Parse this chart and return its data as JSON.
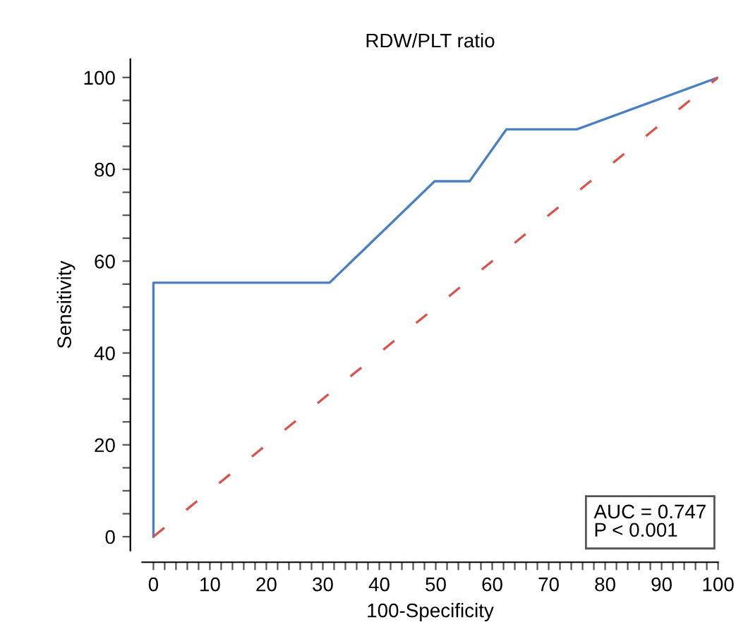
{
  "chart_data": {
    "type": "line",
    "title": "RDW/PLT ratio",
    "xlabel": "100-Specificity",
    "ylabel": "Sensitivity",
    "series": [
      {
        "color": "#4a7fc1",
        "x": [
          0,
          0,
          31.2,
          49.8,
          56.0,
          62.5,
          75.0,
          100
        ],
        "values": [
          0,
          55.3,
          55.3,
          77.4,
          77.4,
          88.7,
          88.7,
          100
        ],
        "line_style": "solid"
      },
      {
        "color": "#d9534f",
        "x": [
          0,
          100
        ],
        "values": [
          0,
          100
        ],
        "line_style": "dashed"
      }
    ],
    "xlim": [
      -2,
      100
    ],
    "ylim": [
      -3,
      104
    ],
    "xticks": [
      0,
      {
        "value": 2,
        "label": null
      },
      {
        "value": 4,
        "label": null
      },
      {
        "value": 6,
        "label": null
      },
      {
        "value": 8,
        "label": null
      },
      10,
      {
        "value": 12,
        "label": null
      },
      {
        "value": 14,
        "label": null
      },
      {
        "value": 16,
        "label": null
      },
      {
        "value": 18,
        "label": null
      },
      20,
      {
        "value": 22,
        "label": null
      },
      {
        "value": 24,
        "label": null
      },
      {
        "value": 26,
        "label": null
      },
      {
        "value": 28,
        "label": null
      },
      30,
      {
        "value": 32,
        "label": null
      },
      {
        "value": 34,
        "label": null
      },
      {
        "value": 36,
        "label": null
      },
      {
        "value": 38,
        "label": null
      },
      40,
      {
        "value": 42,
        "label": null
      },
      {
        "value": 44,
        "label": null
      },
      {
        "value": 46,
        "label": null
      },
      {
        "value": 48,
        "label": null
      },
      50,
      {
        "value": 52,
        "label": null
      },
      {
        "value": 54,
        "label": null
      },
      {
        "value": 56,
        "label": null
      },
      {
        "value": 58,
        "label": null
      },
      60,
      {
        "value": 62,
        "label": null
      },
      {
        "value": 64,
        "label": null
      },
      {
        "value": 66,
        "label": null
      },
      {
        "value": 68,
        "label": null
      },
      70,
      {
        "value": 72,
        "label": null
      },
      {
        "value": 74,
        "label": null
      },
      {
        "value": 76,
        "label": null
      },
      {
        "value": 78,
        "label": null
      },
      80,
      {
        "value": 82,
        "label": null
      },
      {
        "value": 84,
        "label": null
      },
      {
        "value": 86,
        "label": null
      },
      {
        "value": 88,
        "label": null
      },
      90,
      {
        "value": 92,
        "label": null
      },
      {
        "value": 94,
        "label": null
      },
      {
        "value": 96,
        "label": null
      },
      {
        "value": 98,
        "label": null
      },
      100
    ],
    "yticks": [
      0,
      {
        "value": 5,
        "label": null
      },
      {
        "value": 10,
        "label": null
      },
      {
        "value": 15,
        "label": null
      },
      20,
      {
        "value": 25,
        "label": null
      },
      {
        "value": 30,
        "label": null
      },
      {
        "value": 35,
        "label": null
      },
      40,
      {
        "value": 45,
        "label": null
      },
      {
        "value": 50,
        "label": null
      },
      {
        "value": 55,
        "label": null
      },
      60,
      {
        "value": 65,
        "label": null
      },
      {
        "value": 70,
        "label": null
      },
      {
        "value": 75,
        "label": null
      },
      80,
      {
        "value": 85,
        "label": null
      },
      {
        "value": 90,
        "label": null
      },
      {
        "value": 95,
        "label": null
      },
      100
    ],
    "annotations": [
      "AUC = 0.747\nP < 0.001"
    ],
    "grid": false,
    "legend": false,
    "marker": "none"
  }
}
